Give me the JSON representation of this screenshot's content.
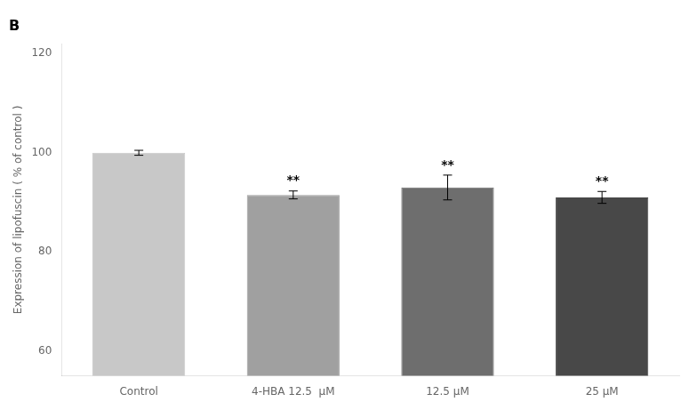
{
  "chart_data": {
    "type": "bar",
    "title": "B",
    "categories": [
      "Control",
      "4-HBA 12.5  μM",
      "12.5 μM",
      "25 μM"
    ],
    "values": [
      100,
      91.5,
      93.0,
      91.0
    ],
    "errors": [
      0.5,
      0.8,
      2.5,
      1.2
    ],
    "annotations": [
      null,
      "**",
      "**",
      "**"
    ],
    "colors": [
      "#c8c8c8",
      "#a0a0a0",
      "#6e6e6e",
      "#484848"
    ],
    "ylabel": "Expression of lipofuscin ( % of control )",
    "ylim": [
      55,
      122
    ],
    "yticks": [
      60,
      80,
      100,
      120
    ],
    "grid": false
  }
}
